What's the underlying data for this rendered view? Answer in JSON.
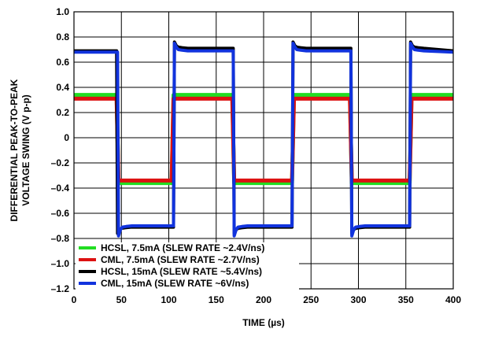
{
  "chart_data": {
    "type": "line",
    "title": "",
    "xlabel": "TIME (µs)",
    "ylabel": "DIFFERENTIAL PEAK-TO-PEAK VOLTAGE SWING (V p-p)",
    "ylabel_lines": [
      "DIFFERENTIAL PEAK-TO-PEAK",
      "VOLTAGE SWING (V p-p)"
    ],
    "xlim": [
      0,
      400
    ],
    "ylim": [
      -1.2,
      1.0
    ],
    "x_ticks": [
      0,
      50,
      100,
      150,
      200,
      250,
      300,
      350,
      400
    ],
    "x_tick_labels": [
      "0",
      "50",
      "100",
      "150",
      "200",
      "250",
      "300",
      "350",
      "400"
    ],
    "y_ticks": [
      1.0,
      0.8,
      0.6,
      0.4,
      0.2,
      0,
      -0.2,
      -0.4,
      -0.6,
      -0.8,
      -1.0,
      -1.2
    ],
    "y_tick_labels": [
      "1.0",
      "0.8",
      "0.6",
      "0.4",
      "0.2",
      "0",
      "–0.2",
      "–0.4",
      "–0.6",
      "–0.8",
      "–1.0",
      "–1.2"
    ],
    "grid": true,
    "legend_position": "bottom-left",
    "series": [
      {
        "name": "HCSL, 7.5mA (SLEW RATE ~2.4V/ns)",
        "color": "#22dd22",
        "x": [
          0,
          45,
          47,
          103,
          105,
          167,
          169,
          230,
          232,
          291,
          293,
          354,
          356,
          400
        ],
        "y": [
          0.34,
          0.34,
          -0.36,
          -0.36,
          0.34,
          0.34,
          -0.36,
          -0.36,
          0.34,
          0.34,
          -0.36,
          -0.36,
          0.34,
          0.34
        ]
      },
      {
        "name": "CML, 7.5mA (SLEW RATE ~2.7V/ns)",
        "color": "#dd1111",
        "x": [
          0,
          45,
          47,
          103,
          105,
          167,
          169,
          230,
          232,
          291,
          293,
          354,
          356,
          400
        ],
        "y": [
          0.31,
          0.31,
          -0.34,
          -0.34,
          0.31,
          0.31,
          -0.34,
          -0.34,
          0.31,
          0.31,
          -0.34,
          -0.34,
          0.31,
          0.31
        ]
      },
      {
        "name": "HCSL, 15mA (SLEW RATE ~5.4V/ns)",
        "color": "#000000",
        "x": [
          0,
          45,
          46,
          48,
          50,
          54,
          60,
          105,
          106,
          108,
          110,
          114,
          120,
          168,
          169,
          171,
          173,
          177,
          183,
          230,
          231,
          233,
          235,
          239,
          245,
          292,
          293,
          295,
          297,
          301,
          307,
          354,
          355,
          357,
          359,
          363,
          369,
          400
        ],
        "y": [
          0.69,
          0.69,
          -0.76,
          -0.73,
          -0.72,
          -0.715,
          -0.71,
          -0.71,
          0.76,
          0.73,
          0.72,
          0.715,
          0.71,
          0.71,
          -0.76,
          -0.73,
          -0.72,
          -0.715,
          -0.71,
          -0.71,
          0.76,
          0.73,
          0.72,
          0.715,
          0.71,
          0.71,
          -0.76,
          -0.73,
          -0.72,
          -0.715,
          -0.71,
          -0.71,
          0.76,
          0.73,
          0.72,
          0.715,
          0.71,
          0.69
        ]
      },
      {
        "name": "CML, 15mA (SLEW RATE ~6V/ns)",
        "color": "#1133dd",
        "x": [
          0,
          46,
          47,
          49,
          51,
          55,
          61,
          105,
          106,
          108,
          110,
          114,
          120,
          168,
          169,
          171,
          173,
          177,
          183,
          230,
          231,
          233,
          235,
          239,
          245,
          292,
          293,
          295,
          297,
          301,
          307,
          354,
          355,
          357,
          359,
          363,
          369,
          400
        ],
        "y": [
          0.68,
          0.68,
          -0.78,
          -0.73,
          -0.71,
          -0.705,
          -0.7,
          -0.7,
          0.75,
          0.72,
          0.7,
          0.695,
          0.69,
          0.69,
          -0.78,
          -0.73,
          -0.71,
          -0.705,
          -0.7,
          -0.7,
          0.75,
          0.72,
          0.7,
          0.695,
          0.69,
          0.69,
          -0.78,
          -0.73,
          -0.71,
          -0.705,
          -0.7,
          -0.7,
          0.75,
          0.72,
          0.7,
          0.695,
          0.69,
          0.68
        ]
      }
    ]
  }
}
